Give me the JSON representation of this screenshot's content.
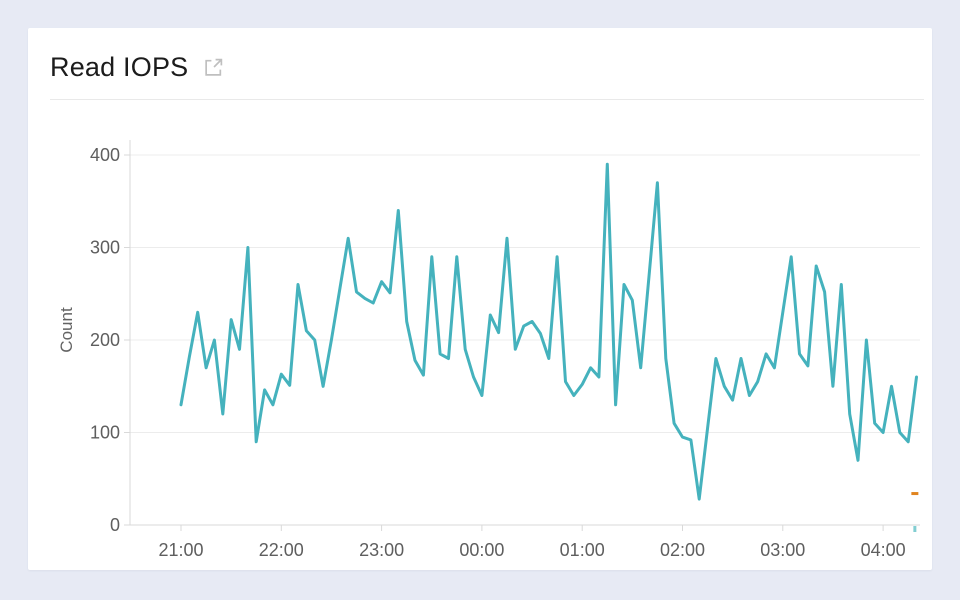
{
  "header": {
    "title": "Read IOPS",
    "external_link_icon": "open-in-new-window"
  },
  "colors": {
    "page_background": "#e7eaf4",
    "card_background": "#ffffff",
    "title_text": "#1c1c1c",
    "icon_gray": "#bfbfbf",
    "divider": "#e9e9e9",
    "gridline": "#ececec",
    "axis_line": "#d9d9d9",
    "tick_text": "#5e5e5e",
    "axis_label_text": "#636363",
    "series_teal": "#45b2bd",
    "fragment_orange": "#e0841f",
    "axis_end_tick_teal": "#82ced2"
  },
  "chart_data": {
    "type": "line",
    "title": "Read IOPS",
    "xlabel": "",
    "ylabel": "Count",
    "ylim": [
      0,
      400
    ],
    "y_ticks": [
      0,
      100,
      200,
      300,
      400
    ],
    "y_tick_labels": [
      "0",
      "100",
      "200",
      "300",
      "400"
    ],
    "x_tick_labels": [
      "21:00",
      "22:00",
      "23:00",
      "00:00",
      "01:00",
      "02:00",
      "03:00",
      "04:00"
    ],
    "x_tick_minutes": [
      0,
      60,
      120,
      180,
      240,
      300,
      360,
      420
    ],
    "grid": "horizontal",
    "legend": "none",
    "point_interval_minutes": 5,
    "series": [
      {
        "name": "Read IOPS",
        "color": "#45b2bd",
        "x_times": [
          "21:00",
          "21:05",
          "21:10",
          "21:15",
          "21:20",
          "21:25",
          "21:30",
          "21:35",
          "21:40",
          "21:45",
          "21:50",
          "21:55",
          "22:00",
          "22:05",
          "22:10",
          "22:15",
          "22:20",
          "22:25",
          "22:30",
          "22:35",
          "22:40",
          "22:45",
          "22:50",
          "22:55",
          "23:00",
          "23:05",
          "23:10",
          "23:15",
          "23:20",
          "23:25",
          "23:30",
          "23:35",
          "23:40",
          "23:45",
          "23:50",
          "23:55",
          "00:00",
          "00:05",
          "00:10",
          "00:15",
          "00:20",
          "00:25",
          "00:30",
          "00:35",
          "00:40",
          "00:45",
          "00:50",
          "00:55",
          "01:00",
          "01:05",
          "01:10",
          "01:15",
          "01:20",
          "01:25",
          "01:30",
          "01:35",
          "01:40",
          "01:45",
          "01:50",
          "01:55",
          "02:00",
          "02:05",
          "02:10",
          "02:15",
          "02:20",
          "02:25",
          "02:30",
          "02:35",
          "02:40",
          "02:45",
          "02:50",
          "02:55",
          "03:00",
          "03:05",
          "03:10",
          "03:15",
          "03:20",
          "03:25",
          "03:30",
          "03:35",
          "03:40",
          "03:45",
          "03:50",
          "03:55",
          "04:00",
          "04:05",
          "04:10",
          "04:15",
          "04:20"
        ],
        "values": [
          130,
          182,
          230,
          170,
          200,
          120,
          222,
          190,
          300,
          90,
          146,
          130,
          163,
          151,
          260,
          210,
          200,
          150,
          200,
          255,
          310,
          252,
          245,
          240,
          263,
          251,
          340,
          220,
          178,
          162,
          290,
          185,
          180,
          290,
          190,
          160,
          140,
          227,
          208,
          310,
          190,
          215,
          220,
          207,
          180,
          290,
          155,
          140,
          152,
          170,
          160,
          390,
          130,
          260,
          243,
          170,
          270,
          370,
          180,
          110,
          95,
          92,
          28,
          105,
          180,
          150,
          135,
          180,
          140,
          155,
          185,
          170,
          230,
          290,
          185,
          172,
          280,
          252,
          150,
          260,
          120,
          70,
          200,
          110,
          100,
          150,
          100,
          90,
          160
        ]
      }
    ],
    "edge_marks": [
      {
        "type": "dash",
        "name": "orange-series-fragment",
        "color": "#e0841f",
        "time_min": 439,
        "value": 34
      },
      {
        "type": "axis-tick",
        "name": "axis-end-tick",
        "color": "#82ced2",
        "time_min": 439
      }
    ]
  }
}
